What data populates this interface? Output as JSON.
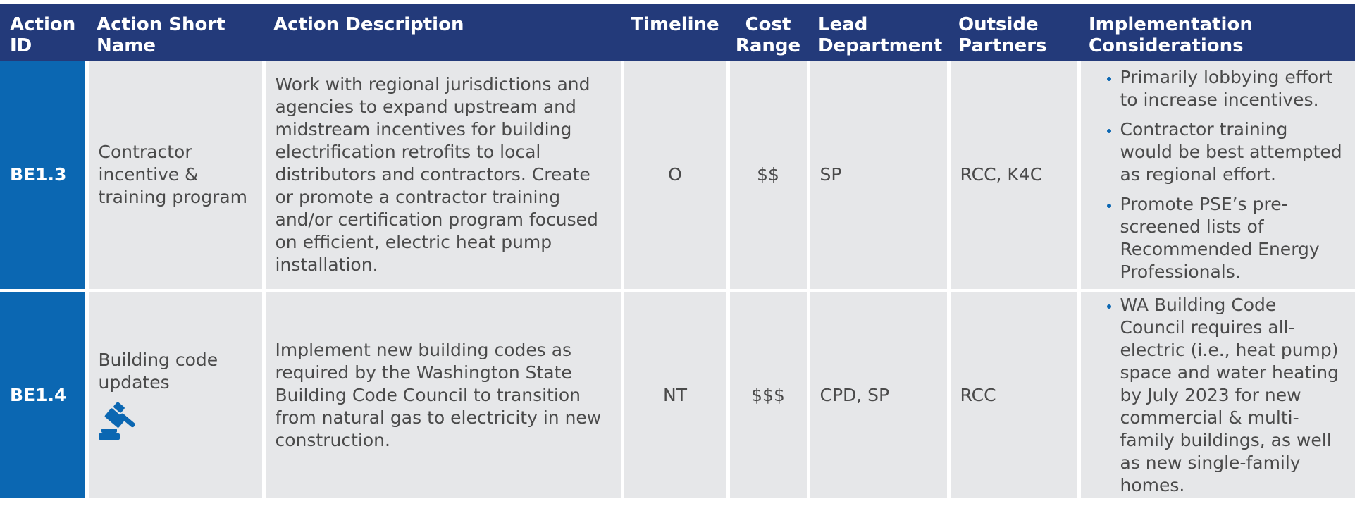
{
  "header": {
    "columns": [
      "Action ID",
      "Action Short Name",
      "Action Description",
      "Timeline",
      "Cost Range",
      "Lead Department",
      "Outside Partners",
      "Implementation Considerations"
    ]
  },
  "rows": [
    {
      "id": "BE1.3",
      "short_name": "Contractor incentive & training program",
      "description": "Work with regional jurisdictions and agencies to expand upstream and midstream incentives for building electrification retrofits to local distributors and contractors. Create or promote a contractor training and/or certification program focused on efficient, electric heat pump installation.",
      "timeline": "O",
      "cost": "$$",
      "lead": "SP",
      "partners": "RCC, K4C",
      "considerations": [
        "Primarily lobbying effort to increase incentives.",
        "Contractor training would be best attempted as regional effort.",
        "Promote PSE’s pre-screened lists of Recommended Energy Professionals."
      ]
    },
    {
      "id": "BE1.4",
      "short_name": "Building code updates",
      "description": "Implement new building codes as required by the Washington State Building Code Council to transition from natural gas to electricity in new construction.",
      "timeline": "NT",
      "cost": "$$$",
      "lead": "CPD, SP",
      "partners": "RCC",
      "considerations": [
        "WA Building Code Council requires all-electric (i.e., heat pump) space and water heating by July 2023 for new commercial & multi-family buildings, as well as new single-family homes."
      ]
    }
  ]
}
